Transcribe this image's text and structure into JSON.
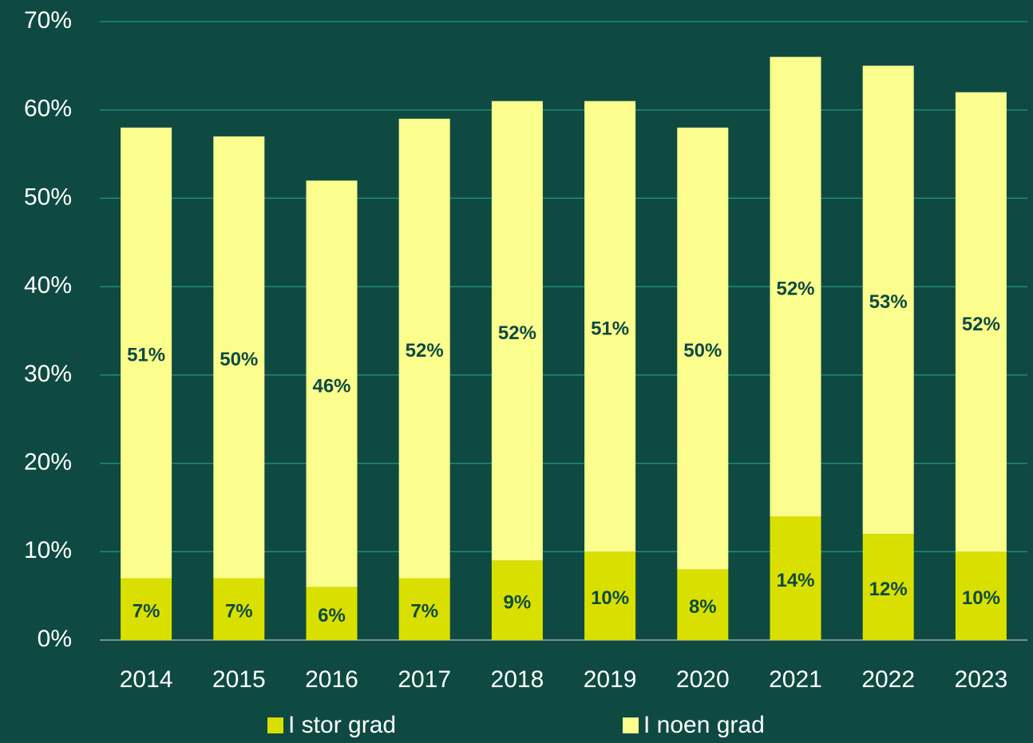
{
  "chart_data": {
    "type": "stacked_bar",
    "categories": [
      "2014",
      "2015",
      "2016",
      "2017",
      "2018",
      "2019",
      "2020",
      "2021",
      "2022",
      "2023"
    ],
    "series": [
      {
        "name": "I stor grad",
        "color": "#d9e000",
        "values": [
          7,
          7,
          6,
          7,
          9,
          10,
          8,
          14,
          12,
          10
        ],
        "value_labels": [
          "7%",
          "7%",
          "6%",
          "7%",
          "9%",
          "10%",
          "8%",
          "14%",
          "12%",
          "10%"
        ]
      },
      {
        "name": "I noen grad",
        "color": "#fbfd8d",
        "values": [
          51,
          50,
          46,
          52,
          52,
          51,
          50,
          52,
          53,
          52
        ],
        "value_labels": [
          "51%",
          "50%",
          "46%",
          "52%",
          "52%",
          "51%",
          "50%",
          "52%",
          "53%",
          "52%"
        ]
      }
    ],
    "ylim": [
      0,
      70
    ],
    "yticks": [
      {
        "value": 0,
        "label": "0%"
      },
      {
        "value": 10,
        "label": "10%"
      },
      {
        "value": 20,
        "label": "20%"
      },
      {
        "value": 30,
        "label": "30%"
      },
      {
        "value": 40,
        "label": "40%"
      },
      {
        "value": 50,
        "label": "50%"
      },
      {
        "value": 60,
        "label": "60%"
      },
      {
        "value": 70,
        "label": "70%"
      }
    ],
    "grid": true,
    "legend": "bottom"
  }
}
